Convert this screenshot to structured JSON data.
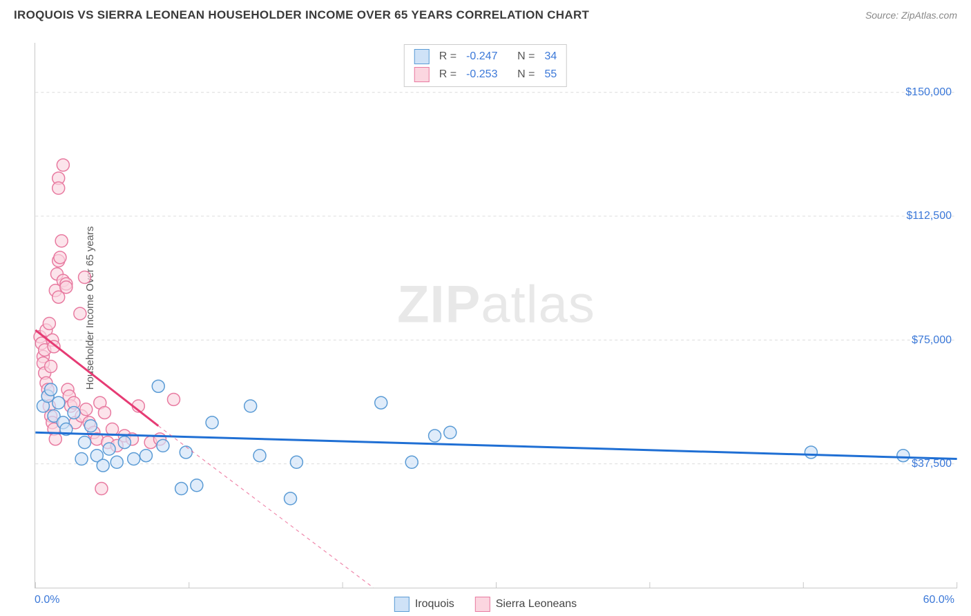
{
  "header": {
    "title": "IROQUOIS VS SIERRA LEONEAN HOUSEHOLDER INCOME OVER 65 YEARS CORRELATION CHART",
    "source": "Source: ZipAtlas.com"
  },
  "y_axis_label": "Householder Income Over 65 years",
  "watermark_bold": "ZIP",
  "watermark_rest": "atlas",
  "chart": {
    "type": "scatter",
    "background_color": "#ffffff",
    "grid_color": "#dcdcdc",
    "axis_color": "#c8c8c8",
    "xlim": [
      0,
      60
    ],
    "ylim": [
      0,
      165000
    ],
    "x_corner_left": "0.0%",
    "x_corner_right": "60.0%",
    "x_ticks_major": [
      0,
      10,
      20,
      30,
      40,
      50,
      60
    ],
    "y_ticks": [
      {
        "value": 37500,
        "label": "$37,500"
      },
      {
        "value": 75000,
        "label": "$75,000"
      },
      {
        "value": 112500,
        "label": "$112,500"
      },
      {
        "value": 150000,
        "label": "$150,000"
      }
    ],
    "marker_radius": 9,
    "marker_stroke_width": 1.5,
    "trend_line_width": 3,
    "series": [
      {
        "name": "Iroquois",
        "fill": "#cfe2f7",
        "stroke": "#5a9bd5",
        "fill_opacity": 0.65,
        "trend_color": "#1f6fd4",
        "trend_solid_range": [
          0,
          60
        ],
        "trend_y_start": 47000,
        "trend_y_end": 39000,
        "points": [
          {
            "x": 0.5,
            "y": 55000
          },
          {
            "x": 0.8,
            "y": 58000
          },
          {
            "x": 1.0,
            "y": 60000
          },
          {
            "x": 1.2,
            "y": 52000
          },
          {
            "x": 1.5,
            "y": 56000
          },
          {
            "x": 1.8,
            "y": 50000
          },
          {
            "x": 2.0,
            "y": 48000
          },
          {
            "x": 2.5,
            "y": 53000
          },
          {
            "x": 3.0,
            "y": 39000
          },
          {
            "x": 3.2,
            "y": 44000
          },
          {
            "x": 3.6,
            "y": 49000
          },
          {
            "x": 4.0,
            "y": 40000
          },
          {
            "x": 4.4,
            "y": 37000
          },
          {
            "x": 4.8,
            "y": 42000
          },
          {
            "x": 5.3,
            "y": 38000
          },
          {
            "x": 5.8,
            "y": 44000
          },
          {
            "x": 6.4,
            "y": 39000
          },
          {
            "x": 7.2,
            "y": 40000
          },
          {
            "x": 8.0,
            "y": 61000
          },
          {
            "x": 8.3,
            "y": 43000
          },
          {
            "x": 9.5,
            "y": 30000
          },
          {
            "x": 9.8,
            "y": 41000
          },
          {
            "x": 10.5,
            "y": 31000
          },
          {
            "x": 11.5,
            "y": 50000
          },
          {
            "x": 14.0,
            "y": 55000
          },
          {
            "x": 14.6,
            "y": 40000
          },
          {
            "x": 16.6,
            "y": 27000
          },
          {
            "x": 17.0,
            "y": 38000
          },
          {
            "x": 22.5,
            "y": 56000
          },
          {
            "x": 24.5,
            "y": 38000
          },
          {
            "x": 26.0,
            "y": 46000
          },
          {
            "x": 27.0,
            "y": 47000
          },
          {
            "x": 50.5,
            "y": 41000
          },
          {
            "x": 56.5,
            "y": 40000
          }
        ]
      },
      {
        "name": "Sierra Leoneans",
        "fill": "#fbd6e0",
        "stroke": "#e87aa0",
        "fill_opacity": 0.65,
        "trend_color": "#e63b74",
        "trend_solid_range": [
          0,
          8
        ],
        "trend_dash_range": [
          8,
          22
        ],
        "trend_y_start": 78000,
        "trend_y_end_solid": 49000,
        "trend_y_end_dash": 0,
        "points": [
          {
            "x": 0.3,
            "y": 76000
          },
          {
            "x": 0.4,
            "y": 74000
          },
          {
            "x": 0.5,
            "y": 70000
          },
          {
            "x": 0.5,
            "y": 68000
          },
          {
            "x": 0.6,
            "y": 72000
          },
          {
            "x": 0.6,
            "y": 65000
          },
          {
            "x": 0.7,
            "y": 78000
          },
          {
            "x": 0.7,
            "y": 62000
          },
          {
            "x": 0.8,
            "y": 60000
          },
          {
            "x": 0.8,
            "y": 58000
          },
          {
            "x": 0.9,
            "y": 80000
          },
          {
            "x": 0.9,
            "y": 55000
          },
          {
            "x": 1.0,
            "y": 67000
          },
          {
            "x": 1.0,
            "y": 52000
          },
          {
            "x": 1.1,
            "y": 75000
          },
          {
            "x": 1.1,
            "y": 50000
          },
          {
            "x": 1.2,
            "y": 73000
          },
          {
            "x": 1.2,
            "y": 48000
          },
          {
            "x": 1.3,
            "y": 90000
          },
          {
            "x": 1.3,
            "y": 45000
          },
          {
            "x": 1.4,
            "y": 95000
          },
          {
            "x": 1.5,
            "y": 88000
          },
          {
            "x": 1.5,
            "y": 99000
          },
          {
            "x": 1.5,
            "y": 124000
          },
          {
            "x": 1.5,
            "y": 121000
          },
          {
            "x": 1.6,
            "y": 100000
          },
          {
            "x": 1.7,
            "y": 105000
          },
          {
            "x": 1.8,
            "y": 128000
          },
          {
            "x": 1.8,
            "y": 93000
          },
          {
            "x": 2.0,
            "y": 92000
          },
          {
            "x": 2.0,
            "y": 91000
          },
          {
            "x": 2.1,
            "y": 60000
          },
          {
            "x": 2.2,
            "y": 58000
          },
          {
            "x": 2.3,
            "y": 55000
          },
          {
            "x": 2.5,
            "y": 56000
          },
          {
            "x": 2.6,
            "y": 50000
          },
          {
            "x": 2.9,
            "y": 83000
          },
          {
            "x": 3.0,
            "y": 52000
          },
          {
            "x": 3.2,
            "y": 94000
          },
          {
            "x": 3.3,
            "y": 54000
          },
          {
            "x": 3.5,
            "y": 50000
          },
          {
            "x": 3.8,
            "y": 47000
          },
          {
            "x": 4.0,
            "y": 45000
          },
          {
            "x": 4.2,
            "y": 56000
          },
          {
            "x": 4.3,
            "y": 30000
          },
          {
            "x": 4.5,
            "y": 53000
          },
          {
            "x": 4.7,
            "y": 44000
          },
          {
            "x": 5.0,
            "y": 48000
          },
          {
            "x": 5.3,
            "y": 43000
          },
          {
            "x": 5.8,
            "y": 46000
          },
          {
            "x": 6.3,
            "y": 45000
          },
          {
            "x": 6.7,
            "y": 55000
          },
          {
            "x": 7.5,
            "y": 44000
          },
          {
            "x": 8.1,
            "y": 45000
          },
          {
            "x": 9.0,
            "y": 57000
          }
        ]
      }
    ]
  },
  "legend_stats": {
    "rows": [
      {
        "swatch_fill": "#cfe2f7",
        "swatch_stroke": "#5a9bd5",
        "r_label": "R =",
        "r_value": "-0.247",
        "n_label": "N =",
        "n_value": "34"
      },
      {
        "swatch_fill": "#fbd6e0",
        "swatch_stroke": "#e87aa0",
        "r_label": "R =",
        "r_value": "-0.253",
        "n_label": "N =",
        "n_value": "55"
      }
    ]
  },
  "x_legend": {
    "items": [
      {
        "swatch_fill": "#cfe2f7",
        "swatch_stroke": "#5a9bd5",
        "label": "Iroquois"
      },
      {
        "swatch_fill": "#fbd6e0",
        "swatch_stroke": "#e87aa0",
        "label": "Sierra Leoneans"
      }
    ]
  }
}
